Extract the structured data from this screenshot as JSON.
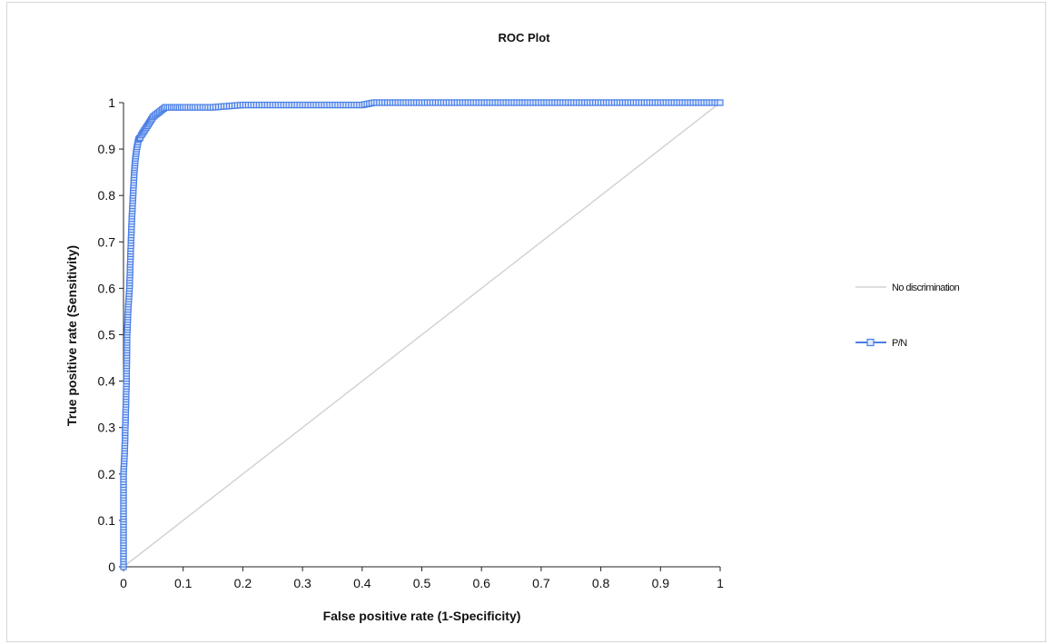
{
  "chart_data": {
    "type": "line",
    "title": "ROC Plot",
    "xlabel": "False positive rate (1-Specificity)",
    "ylabel": "True positive rate (Sensitivity)",
    "xlim": [
      0,
      1
    ],
    "ylim": [
      0,
      1
    ],
    "x_ticks": [
      "0",
      "0.1",
      "0.2",
      "0.3",
      "0.4",
      "0.5",
      "0.6",
      "0.7",
      "0.8",
      "0.9",
      "1"
    ],
    "y_ticks": [
      "0",
      "0.1",
      "0.2",
      "0.3",
      "0.4",
      "0.5",
      "0.6",
      "0.7",
      "0.8",
      "0.9",
      "1"
    ],
    "grid": false,
    "legend_position": "right",
    "series": [
      {
        "name": "No discrimination",
        "style": "line",
        "color": "#d3d3d3",
        "x": [
          0,
          1
        ],
        "y": [
          0,
          1
        ]
      },
      {
        "name": "P/N",
        "style": "line-square-markers",
        "color": "#4a7fe6",
        "x": [
          0,
          0,
          0.002,
          0.003,
          0.005,
          0.006,
          0.008,
          0.01,
          0.012,
          0.014,
          0.016,
          0.018,
          0.02,
          0.022,
          0.025,
          0.028,
          0.03,
          0.035,
          0.04,
          0.045,
          0.05,
          0.055,
          0.06,
          0.065,
          0.07,
          0.08,
          0.09,
          0.1,
          0.12,
          0.15,
          0.2,
          0.3,
          0.4,
          0.42,
          0.5,
          0.6,
          0.7,
          0.8,
          0.9,
          1
        ],
        "y": [
          0,
          0.2,
          0.25,
          0.3,
          0.4,
          0.5,
          0.56,
          0.6,
          0.68,
          0.75,
          0.8,
          0.85,
          0.88,
          0.9,
          0.92,
          0.925,
          0.93,
          0.94,
          0.95,
          0.96,
          0.97,
          0.975,
          0.98,
          0.985,
          0.99,
          0.99,
          0.99,
          0.99,
          0.99,
          0.99,
          0.995,
          0.995,
          0.995,
          1,
          1,
          1,
          1,
          1,
          1,
          1
        ]
      }
    ]
  }
}
